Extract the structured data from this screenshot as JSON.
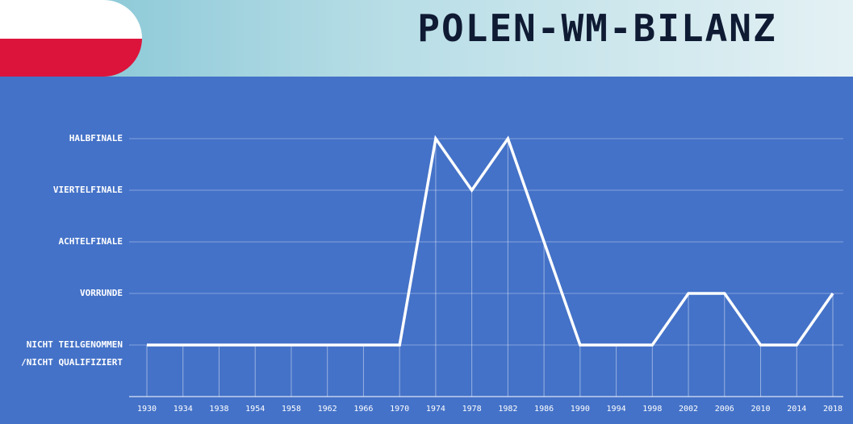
{
  "title": "POLEN-WM-BILANZ",
  "chart_data": {
    "type": "line",
    "categories": [
      "1930",
      "1934",
      "1938",
      "1954",
      "1958",
      "1962",
      "1966",
      "1970",
      "1974",
      "1978",
      "1982",
      "1986",
      "1990",
      "1994",
      "1998",
      "2002",
      "2006",
      "2010",
      "2014",
      "2018"
    ],
    "values": [
      0,
      0,
      0,
      0,
      0,
      0,
      0,
      0,
      4,
      3,
      4,
      2,
      0,
      0,
      0,
      1,
      1,
      0,
      0,
      1
    ],
    "color": "#ffffff",
    "ylim": [
      -1,
      5
    ],
    "yticks": [
      {
        "value": 0,
        "label": "NICHT TEILGENOMMEN /NICHT QUALIFIZIERT"
      },
      {
        "value": 1,
        "label": "VORRUNDE"
      },
      {
        "value": 2,
        "label": "ACHTELFINALE"
      },
      {
        "value": 3,
        "label": "VIERTELFINALE"
      },
      {
        "value": 4,
        "label": "HALBFINALE"
      }
    ],
    "grid": true
  }
}
